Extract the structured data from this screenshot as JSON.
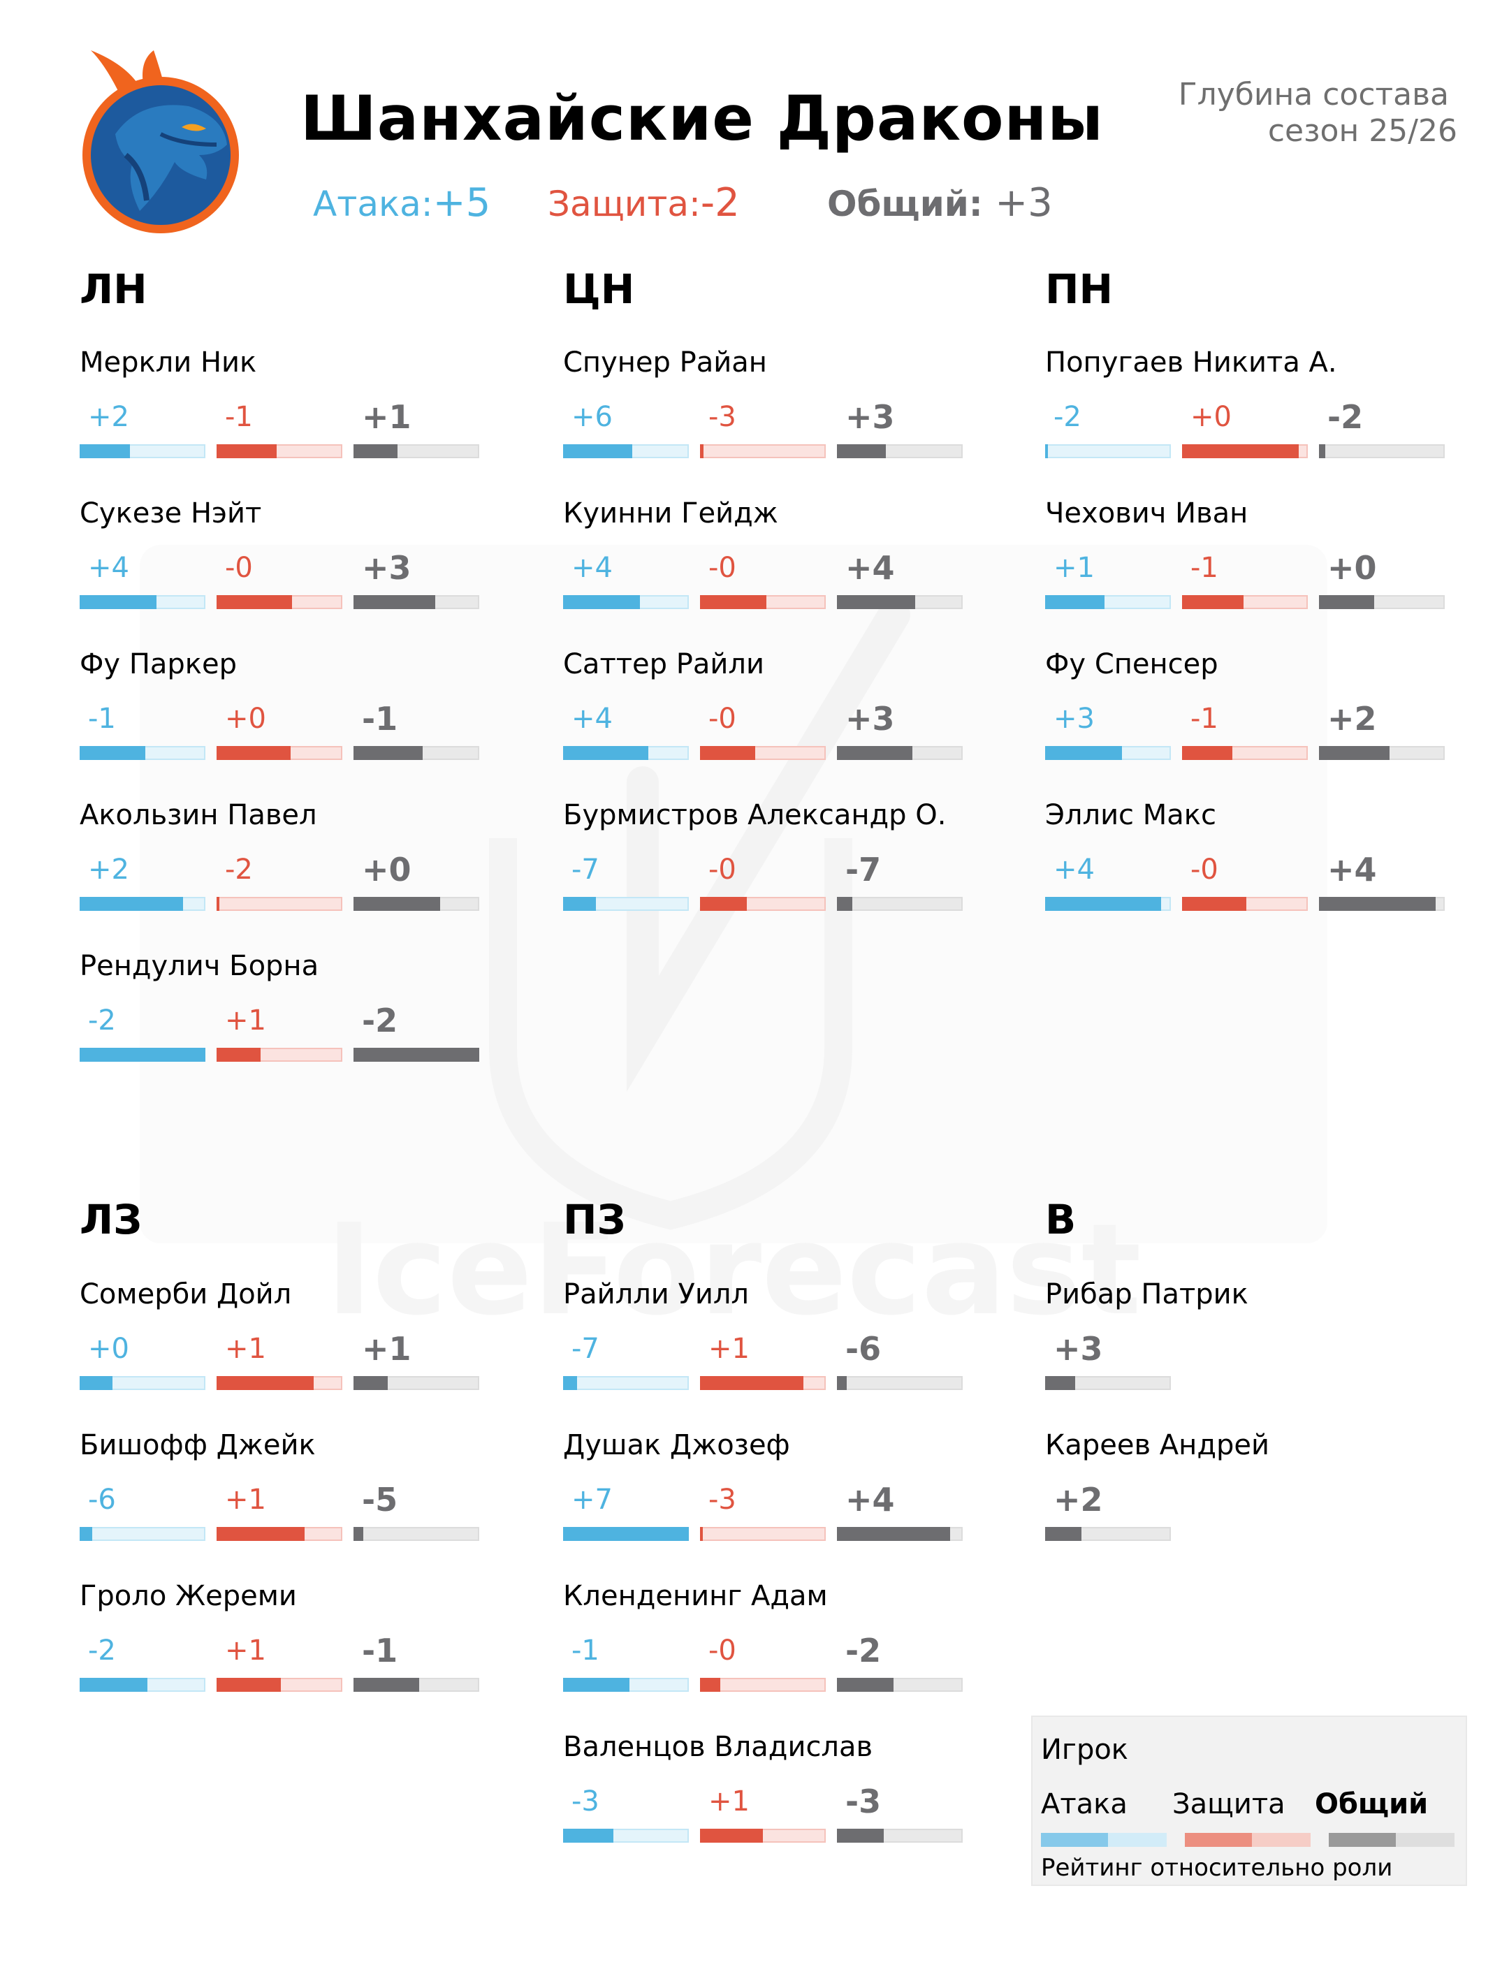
{
  "header": {
    "title": "Шанхайские Драконы",
    "subtitle_line1": "Глубина состава",
    "subtitle_line2": "сезон 25/26",
    "attack_label": "Атака:",
    "attack_value": "+5",
    "defense_label": "Защита:",
    "defense_value": "-2",
    "total_label": "Общий:",
    "total_value": "+3"
  },
  "watermark_text": "IceForecast",
  "colors": {
    "attack": "#4eb3e0",
    "defense": "#e05440",
    "total": "#6d6d70",
    "logo_blue": "#1d5a9e",
    "logo_orange": "#f0641e"
  },
  "sections": {
    "lw": {
      "title": "ЛН",
      "players": [
        {
          "name": "Меркли Ник",
          "atk": "+2",
          "atk_fill": 0.4,
          "def": "-1",
          "def_fill": 0.48,
          "tot": "+1",
          "tot_fill": 0.35
        },
        {
          "name": "Сукезе Нэйт",
          "atk": "+4",
          "atk_fill": 0.61,
          "def": "-0",
          "def_fill": 0.6,
          "tot": "+3",
          "tot_fill": 0.65
        },
        {
          "name": "Фу Паркер",
          "atk": "-1",
          "atk_fill": 0.52,
          "def": "+0",
          "def_fill": 0.59,
          "tot": "-1",
          "tot_fill": 0.55
        },
        {
          "name": "Акользин Павел",
          "atk": "+2",
          "atk_fill": 0.82,
          "def": "-2",
          "def_fill": 0.02,
          "tot": "+0",
          "tot_fill": 0.69
        },
        {
          "name": "Рендулич Борна",
          "atk": "-2",
          "atk_fill": 1.0,
          "def": "+1",
          "def_fill": 0.35,
          "tot": "-2",
          "tot_fill": 1.0
        }
      ]
    },
    "c": {
      "title": "ЦН",
      "players": [
        {
          "name": "Спунер Райан",
          "atk": "+6",
          "atk_fill": 0.55,
          "def": "-3",
          "def_fill": 0.03,
          "tot": "+3",
          "tot_fill": 0.39
        },
        {
          "name": "Куинни Гейдж",
          "atk": "+4",
          "atk_fill": 0.61,
          "def": "-0",
          "def_fill": 0.53,
          "tot": "+4",
          "tot_fill": 0.62
        },
        {
          "name": "Саттер Райли",
          "atk": "+4",
          "atk_fill": 0.68,
          "def": "-0",
          "def_fill": 0.44,
          "tot": "+3",
          "tot_fill": 0.6
        },
        {
          "name": "Бурмистров Александр О.",
          "atk": "-7",
          "atk_fill": 0.26,
          "def": "-0",
          "def_fill": 0.37,
          "tot": "-7",
          "tot_fill": 0.12
        }
      ]
    },
    "rw": {
      "title": "ПН",
      "players": [
        {
          "name": "Попугаев Никита А.",
          "atk": "-2",
          "atk_fill": 0.02,
          "def": "+0",
          "def_fill": 0.93,
          "tot": "-2",
          "tot_fill": 0.05
        },
        {
          "name": "Чехович Иван",
          "atk": "+1",
          "atk_fill": 0.47,
          "def": "-1",
          "def_fill": 0.49,
          "tot": "+0",
          "tot_fill": 0.44
        },
        {
          "name": "Фу Спенсер",
          "atk": "+3",
          "atk_fill": 0.61,
          "def": "-1",
          "def_fill": 0.4,
          "tot": "+2",
          "tot_fill": 0.56
        },
        {
          "name": "Эллис Макс",
          "atk": "+4",
          "atk_fill": 0.92,
          "def": "-0",
          "def_fill": 0.51,
          "tot": "+4",
          "tot_fill": 0.93
        }
      ]
    },
    "ld": {
      "title": "ЛЗ",
      "players": [
        {
          "name": "Сомерби Дойл",
          "atk": "+0",
          "atk_fill": 0.26,
          "def": "+1",
          "def_fill": 0.77,
          "tot": "+1",
          "tot_fill": 0.27
        },
        {
          "name": "Бишофф Джейк",
          "atk": "-6",
          "atk_fill": 0.1,
          "def": "+1",
          "def_fill": 0.7,
          "tot": "-5",
          "tot_fill": 0.08
        },
        {
          "name": "Гроло Жереми",
          "atk": "-2",
          "atk_fill": 0.54,
          "def": "+1",
          "def_fill": 0.51,
          "tot": "-1",
          "tot_fill": 0.52
        }
      ]
    },
    "rd": {
      "title": "ПЗ",
      "players": [
        {
          "name": "Райлли Уилл",
          "atk": "-7",
          "atk_fill": 0.11,
          "def": "+1",
          "def_fill": 0.82,
          "tot": "-6",
          "tot_fill": 0.08
        },
        {
          "name": "Душак Джозеф",
          "atk": "+7",
          "atk_fill": 1.0,
          "def": "-3",
          "def_fill": 0.02,
          "tot": "+4",
          "tot_fill": 0.9
        },
        {
          "name": "Кленденинг Адам",
          "atk": "-1",
          "atk_fill": 0.53,
          "def": "-0",
          "def_fill": 0.16,
          "tot": "-2",
          "tot_fill": 0.45
        },
        {
          "name": "Валенцов Владислав",
          "atk": "-3",
          "atk_fill": 0.4,
          "def": "+1",
          "def_fill": 0.5,
          "tot": "-3",
          "tot_fill": 0.37
        }
      ]
    },
    "g": {
      "title": "В",
      "players": [
        {
          "name": "Рибар Патрик",
          "tot": "+3",
          "tot_fill": 0.24
        },
        {
          "name": "Кареев Андрей",
          "tot": "+2",
          "tot_fill": 0.29
        }
      ]
    }
  },
  "legend": {
    "player": "Игрок",
    "attack": "Атака",
    "defense": "Защита",
    "total": "Общий",
    "note": "Рейтинг относительно роли"
  }
}
